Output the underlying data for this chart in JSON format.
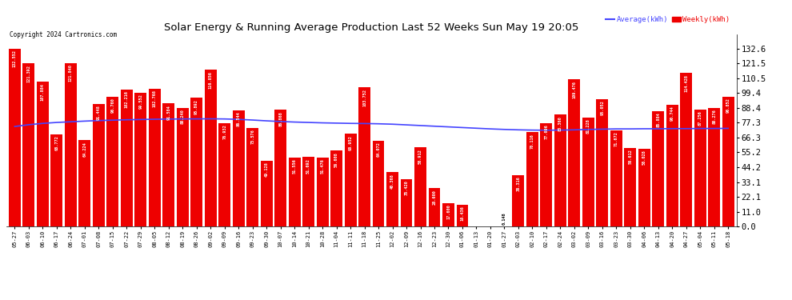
{
  "title": "Solar Energy & Running Average Production Last 52 Weeks Sun May 19 20:05",
  "copyright": "Copyright 2024 Cartronics.com",
  "legend_average": "Average(kWh)",
  "legend_weekly": "Weekly(kWh)",
  "bar_color": "#ee0000",
  "avg_line_color": "#4444ff",
  "background_color": "#ffffff",
  "grid_color": "#cccccc",
  "categories": [
    "05-27",
    "06-03",
    "06-10",
    "06-17",
    "06-24",
    "07-01",
    "07-08",
    "07-15",
    "07-22",
    "07-29",
    "08-05",
    "08-12",
    "08-19",
    "08-26",
    "09-02",
    "09-09",
    "09-16",
    "09-23",
    "09-30",
    "10-07",
    "10-14",
    "10-21",
    "10-28",
    "11-04",
    "11-11",
    "11-18",
    "11-25",
    "12-02",
    "12-09",
    "12-16",
    "12-23",
    "12-30",
    "01-06",
    "01-13",
    "01-20",
    "01-27",
    "02-03",
    "02-10",
    "02-17",
    "02-24",
    "03-02",
    "03-09",
    "03-16",
    "03-23",
    "03-30",
    "04-06",
    "04-13",
    "04-20",
    "04-27",
    "05-04",
    "05-11",
    "05-18"
  ],
  "weekly_values": [
    132.552,
    121.392,
    107.884,
    68.772,
    121.84,
    64.224,
    91.448,
    96.76,
    102.216,
    99.552,
    102.768,
    91.584,
    88.24,
    95.892,
    116.856,
    76.932,
    86.544,
    73.576,
    49.128,
    86.868,
    51.556,
    51.692,
    51.476,
    56.608,
    68.952,
    103.752,
    64.072,
    40.368,
    35.42,
    58.912,
    28.6,
    17.6,
    16.436,
    0.0,
    0.0,
    0.148,
    38.316,
    70.116,
    77.096,
    83.36,
    109.476,
    81.228,
    95.052,
    71.672,
    58.612,
    58.028,
    85.884,
    90.744,
    114.428,
    87.256,
    88.276,
    96.852
  ],
  "avg_values": [
    74.5,
    75.8,
    76.8,
    77.5,
    78.0,
    78.5,
    78.9,
    79.2,
    79.5,
    79.7,
    79.9,
    80.0,
    80.1,
    80.15,
    80.2,
    80.1,
    79.8,
    79.3,
    78.7,
    78.2,
    77.8,
    77.5,
    77.2,
    77.0,
    76.8,
    76.7,
    76.5,
    76.2,
    75.7,
    75.2,
    74.7,
    74.2,
    73.7,
    73.2,
    72.7,
    72.3,
    72.0,
    71.8,
    71.7,
    71.8,
    72.0,
    72.3,
    72.5,
    72.7,
    72.7,
    72.8,
    72.8,
    72.9,
    72.9,
    73.0,
    73.0,
    73.1
  ],
  "yticks_right": [
    0.0,
    11.0,
    22.1,
    33.1,
    44.2,
    55.2,
    66.3,
    77.3,
    88.4,
    99.4,
    110.5,
    121.5,
    132.6
  ],
  "ymax": 143,
  "ymin": 0
}
